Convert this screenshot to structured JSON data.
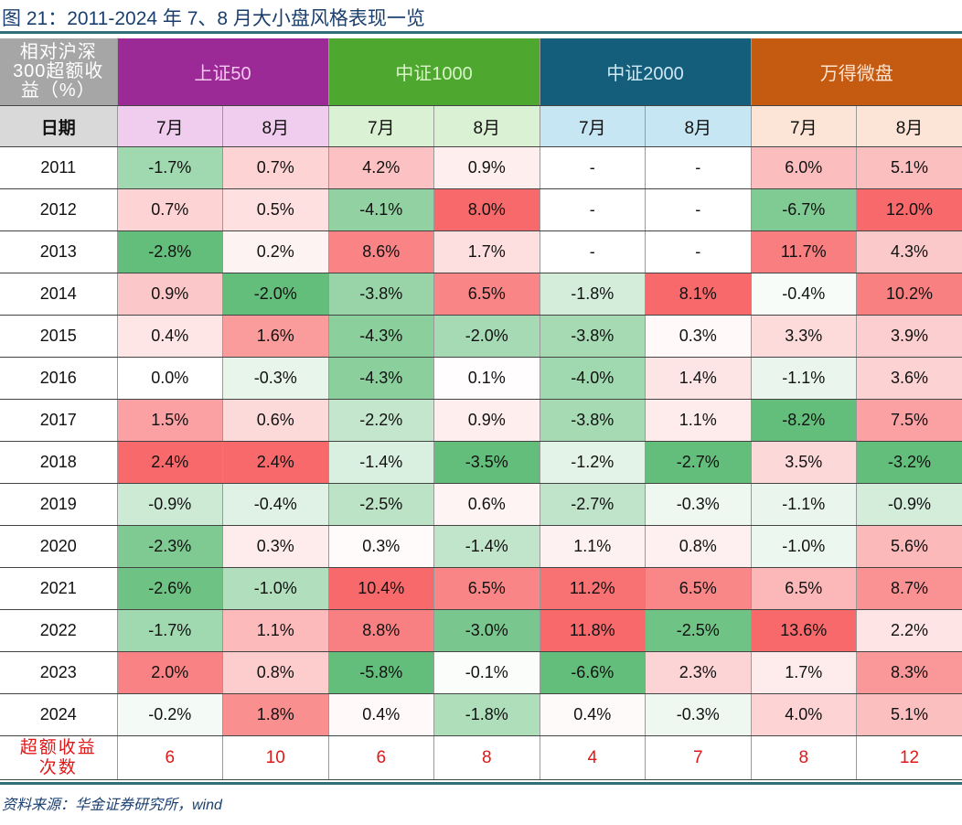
{
  "title": "图 21：2011-2024 年 7、8 月大小盘风格表现一览",
  "source": "资料来源：华金证券研究所，wind",
  "chart_data": {
    "type": "table",
    "corner_label": "相对沪深300超额收益（%）",
    "date_label": "日期",
    "groups": [
      {
        "name": "上证50",
        "color": "#9b2a96",
        "text_color": "#f5c8f0",
        "sub_color": "#f0cdef"
      },
      {
        "name": "中证1000",
        "color": "#4ea72e",
        "text_color": "#d8f5c8",
        "sub_color": "#dbf1d4"
      },
      {
        "name": "中证2000",
        "color": "#145e7c",
        "text_color": "#cfe9f5",
        "sub_color": "#c6e6f3"
      },
      {
        "name": "万得微盘",
        "color": "#c55a11",
        "text_color": "#fde3d0",
        "sub_color": "#fce4d6"
      }
    ],
    "months": [
      "7月",
      "8月"
    ],
    "color_scale": {
      "negative": "#63be7b",
      "zero": "#ffffff",
      "positive": "#f8696b"
    },
    "rows": [
      {
        "year": "2011",
        "values": [
          "-1.7%",
          "0.7%",
          "4.2%",
          "0.9%",
          "-",
          "-",
          "6.0%",
          "5.1%"
        ]
      },
      {
        "year": "2012",
        "values": [
          "0.7%",
          "0.5%",
          "-4.1%",
          "8.0%",
          "-",
          "-",
          "-6.7%",
          "12.0%"
        ]
      },
      {
        "year": "2013",
        "values": [
          "-2.8%",
          "0.2%",
          "8.6%",
          "1.7%",
          "-",
          "-",
          "11.7%",
          "4.3%"
        ]
      },
      {
        "year": "2014",
        "values": [
          "0.9%",
          "-2.0%",
          "-3.8%",
          "6.5%",
          "-1.8%",
          "8.1%",
          "-0.4%",
          "10.2%"
        ]
      },
      {
        "year": "2015",
        "values": [
          "0.4%",
          "1.6%",
          "-4.3%",
          "-2.0%",
          "-3.8%",
          "0.3%",
          "3.3%",
          "3.9%"
        ]
      },
      {
        "year": "2016",
        "values": [
          "0.0%",
          "-0.3%",
          "-4.3%",
          "0.1%",
          "-4.0%",
          "1.4%",
          "-1.1%",
          "3.6%"
        ]
      },
      {
        "year": "2017",
        "values": [
          "1.5%",
          "0.6%",
          "-2.2%",
          "0.9%",
          "-3.8%",
          "1.1%",
          "-8.2%",
          "7.5%"
        ]
      },
      {
        "year": "2018",
        "values": [
          "2.4%",
          "2.4%",
          "-1.4%",
          "-3.5%",
          "-1.2%",
          "-2.7%",
          "3.5%",
          "-3.2%"
        ]
      },
      {
        "year": "2019",
        "values": [
          "-0.9%",
          "-0.4%",
          "-2.5%",
          "0.6%",
          "-2.7%",
          "-0.3%",
          "-1.1%",
          "-0.9%"
        ]
      },
      {
        "year": "2020",
        "values": [
          "-2.3%",
          "0.3%",
          "0.3%",
          "-1.4%",
          "1.1%",
          "0.8%",
          "-1.0%",
          "5.6%"
        ]
      },
      {
        "year": "2021",
        "values": [
          "-2.6%",
          "-1.0%",
          "10.4%",
          "6.5%",
          "11.2%",
          "6.5%",
          "6.5%",
          "8.7%"
        ]
      },
      {
        "year": "2022",
        "values": [
          "-1.7%",
          "1.1%",
          "8.8%",
          "-3.0%",
          "11.8%",
          "-2.5%",
          "13.6%",
          "2.2%"
        ]
      },
      {
        "year": "2023",
        "values": [
          "2.0%",
          "0.8%",
          "-5.8%",
          "-0.1%",
          "-6.6%",
          "2.3%",
          "1.7%",
          "8.3%"
        ]
      },
      {
        "year": "2024",
        "values": [
          "-0.2%",
          "1.8%",
          "0.4%",
          "-1.8%",
          "0.4%",
          "-0.3%",
          "4.0%",
          "5.1%"
        ]
      }
    ],
    "count_row": {
      "label_line1": "超额收益",
      "label_line2": "次数",
      "values": [
        "6",
        "10",
        "6",
        "8",
        "4",
        "7",
        "8",
        "12"
      ]
    }
  }
}
